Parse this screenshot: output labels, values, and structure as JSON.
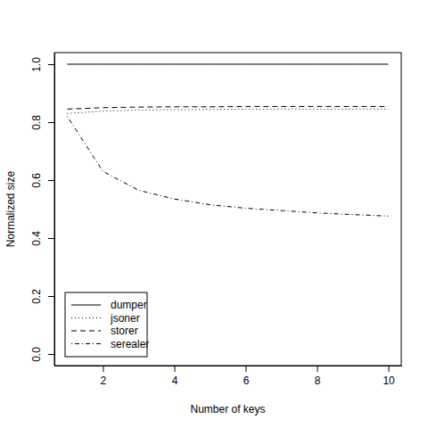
{
  "chart_data": {
    "type": "line",
    "x_label": "Number of keys",
    "y_label": "Normalized size",
    "x": [
      1,
      2,
      3,
      4,
      5,
      6,
      7,
      8,
      9,
      10
    ],
    "series": [
      {
        "name": "dumper",
        "color": "#000000",
        "line_style": "solid",
        "values": [
          1,
          1,
          1,
          1,
          1,
          1,
          1,
          1,
          1,
          1
        ]
      },
      {
        "name": "jsoner",
        "color": "#000000",
        "line_style": "dotted",
        "values": [
          0.83,
          0.838,
          0.842,
          0.843,
          0.844,
          0.845,
          0.845,
          0.845,
          0.845,
          0.845
        ]
      },
      {
        "name": "storer",
        "color": "#000000",
        "line_style": "dashed",
        "values": [
          0.845,
          0.85,
          0.852,
          0.853,
          0.853,
          0.854,
          0.854,
          0.854,
          0.854,
          0.854
        ]
      },
      {
        "name": "serealer",
        "color": "#000000",
        "line_style": "dotdash",
        "values": [
          0.82,
          0.63,
          0.565,
          0.535,
          0.515,
          0.503,
          0.495,
          0.487,
          0.481,
          0.476
        ]
      }
    ],
    "xlim": [
      0.64,
      10.36
    ],
    "ylim": [
      -0.04,
      1.04
    ],
    "xticks": [
      2,
      4,
      6,
      8,
      10
    ],
    "yticks": [
      {
        "value": 0,
        "label": "0.0"
      },
      0.2,
      0.4,
      0.6,
      0.8,
      {
        "value": 1,
        "label": "1.0"
      }
    ],
    "grid": false,
    "legend": "bottom-left"
  }
}
